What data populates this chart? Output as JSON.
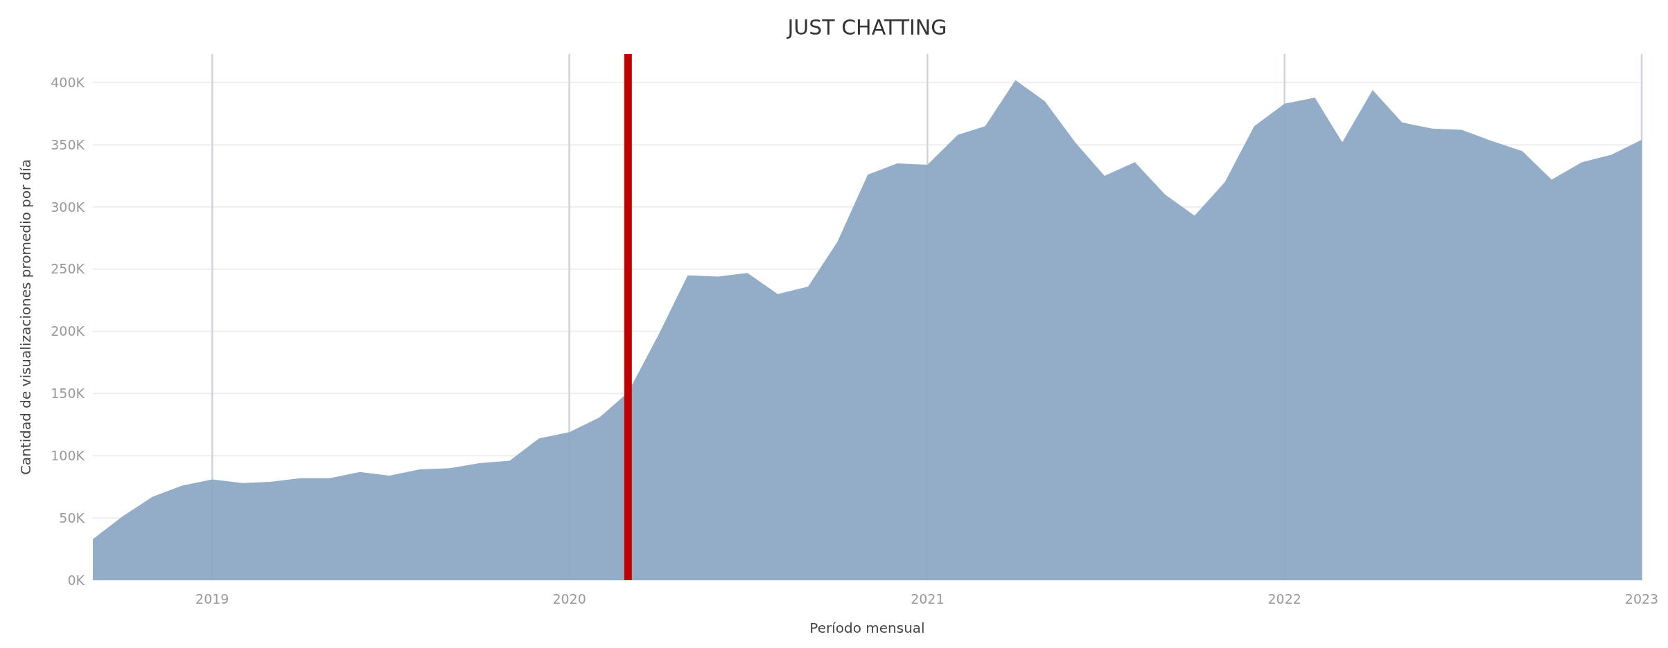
{
  "chart_data": {
    "type": "area",
    "title": "JUST CHATTING",
    "xlabel": "Período mensual",
    "ylabel": "Cantidad de visualizaciones promedio por día",
    "x": [
      "2018-09",
      "2018-10",
      "2018-11",
      "2018-12",
      "2019-01",
      "2019-02",
      "2019-03",
      "2019-04",
      "2019-05",
      "2019-06",
      "2019-07",
      "2019-08",
      "2019-09",
      "2019-10",
      "2019-11",
      "2019-12",
      "2020-01",
      "2020-02",
      "2020-03",
      "2020-04",
      "2020-05",
      "2020-06",
      "2020-07",
      "2020-08",
      "2020-09",
      "2020-10",
      "2020-11",
      "2020-12",
      "2021-01",
      "2021-02",
      "2021-03",
      "2021-04",
      "2021-05",
      "2021-06",
      "2021-07",
      "2021-08",
      "2021-09",
      "2021-10",
      "2021-11",
      "2021-12",
      "2022-01",
      "2022-02",
      "2022-03",
      "2022-04",
      "2022-05",
      "2022-06",
      "2022-07",
      "2022-08",
      "2022-09",
      "2022-10",
      "2022-11",
      "2022-12",
      "2023-01"
    ],
    "series": [
      {
        "color": "#93adc9",
        "values": [
          33000,
          51000,
          67000,
          76000,
          81000,
          78000,
          79000,
          82000,
          82000,
          87000,
          84000,
          89000,
          90000,
          94000,
          96000,
          114000,
          119000,
          131000,
          151000,
          197000,
          245000,
          244000,
          247000,
          230000,
          236000,
          272000,
          326000,
          335000,
          334000,
          358000,
          365000,
          402000,
          385000,
          352000,
          325000,
          336000,
          310000,
          293000,
          320000,
          365000,
          383000,
          388000,
          352000,
          394000,
          368000,
          363000,
          362000,
          353000,
          345000,
          322000,
          336000,
          342000,
          354000
        ]
      }
    ],
    "xlim": [
      "2018-09",
      "2023-01"
    ],
    "xticks": [
      "2019",
      "2020",
      "2021",
      "2022",
      "2023"
    ],
    "ylim": [
      0,
      423000
    ],
    "yticks": [
      {
        "value": 0,
        "label": "0K"
      },
      {
        "value": 50000,
        "label": "50K"
      },
      {
        "value": 100000,
        "label": "100K"
      },
      {
        "value": 150000,
        "label": "150K"
      },
      {
        "value": 200000,
        "label": "200K"
      },
      {
        "value": 250000,
        "label": "250K"
      },
      {
        "value": 300000,
        "label": "300K"
      },
      {
        "value": 350000,
        "label": "350K"
      },
      {
        "value": 400000,
        "label": "400K"
      }
    ],
    "grid": true,
    "ref_lines": [
      {
        "axis": "x",
        "value": "2020-03",
        "color": "#c00000"
      }
    ]
  }
}
